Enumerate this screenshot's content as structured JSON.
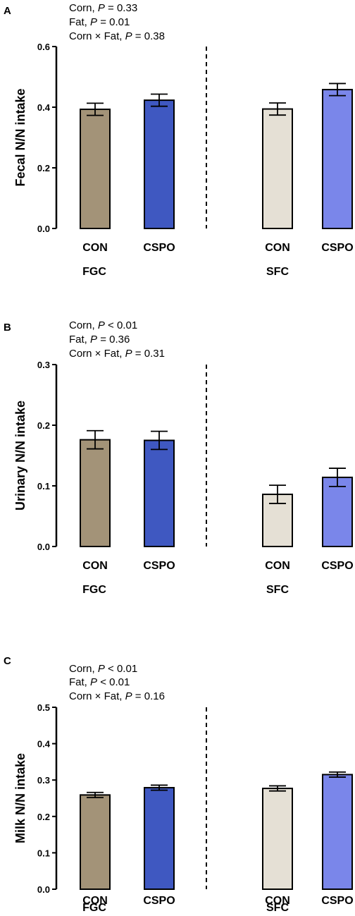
{
  "colors": {
    "FGC-CON": "#A39378",
    "FGC-CSPO": "#3F58C1",
    "SFC-CON": "#E5E0D5",
    "SFC-CSPO": "#7A86EA"
  },
  "chart_data": [
    {
      "type": "bar",
      "panel": "A",
      "stats": [
        {
          "label": "Corn, ",
          "var": "P",
          "rest": " = 0.33"
        },
        {
          "label": "Fat, ",
          "var": "P",
          "rest": " = 0.01"
        },
        {
          "label": "Corn × Fat, ",
          "var": "P",
          "rest": " = 0.38"
        }
      ],
      "ylabel": "Fecal N/N intake",
      "ylim": [
        0,
        0.6
      ],
      "yticks": [
        "0.0",
        "0.2",
        "0.4",
        "0.6"
      ],
      "groups": [
        "FGC",
        "SFC"
      ],
      "categories": [
        "CON",
        "CSPO",
        "CON",
        "CSPO"
      ],
      "bar_keys": [
        "FGC-CON",
        "FGC-CSPO",
        "SFC-CON",
        "SFC-CSPO"
      ],
      "values": [
        0.393,
        0.423,
        0.394,
        0.458
      ],
      "errors": [
        0.02,
        0.02,
        0.02,
        0.02
      ]
    },
    {
      "type": "bar",
      "panel": "B",
      "stats": [
        {
          "label": "Corn, ",
          "var": "P",
          "rest": " < 0.01"
        },
        {
          "label": "Fat, ",
          "var": "P",
          "rest": " = 0.36"
        },
        {
          "label": "Corn × Fat, ",
          "var": "P",
          "rest": " = 0.31"
        }
      ],
      "ylabel": "Urinary N/N intake",
      "ylim": [
        0,
        0.3
      ],
      "yticks": [
        "0.0",
        "0.1",
        "0.2",
        "0.3"
      ],
      "groups": [
        "FGC",
        "SFC"
      ],
      "categories": [
        "CON",
        "CSPO",
        "CON",
        "CSPO"
      ],
      "bar_keys": [
        "FGC-CON",
        "FGC-CSPO",
        "SFC-CON",
        "SFC-CSPO"
      ],
      "values": [
        0.176,
        0.175,
        0.086,
        0.114
      ],
      "errors": [
        0.015,
        0.015,
        0.015,
        0.015
      ]
    },
    {
      "type": "bar",
      "panel": "C",
      "stats": [
        {
          "label": "Corn, ",
          "var": "P",
          "rest": " < 0.01"
        },
        {
          "label": "Fat, ",
          "var": "P",
          "rest": " < 0.01"
        },
        {
          "label": "Corn × Fat, ",
          "var": "P",
          "rest": " = 0.16"
        }
      ],
      "ylabel": "Milk N/N intake",
      "ylim": [
        0,
        0.5
      ],
      "yticks": [
        "0.0",
        "0.1",
        "0.2",
        "0.3",
        "0.4",
        "0.5"
      ],
      "ytick_labels_shown": [
        "0.0",
        "",
        "0.2",
        "",
        "0.4",
        ""
      ],
      "groups": [
        "FGC",
        "SFC"
      ],
      "categories": [
        "CON",
        "CSPO",
        "CON",
        "CSPO"
      ],
      "bar_keys": [
        "FGC-CON",
        "FGC-CSPO",
        "SFC-CON",
        "SFC-CSPO"
      ],
      "values": [
        0.259,
        0.279,
        0.277,
        0.315
      ],
      "errors": [
        0.007,
        0.007,
        0.007,
        0.007
      ]
    }
  ]
}
